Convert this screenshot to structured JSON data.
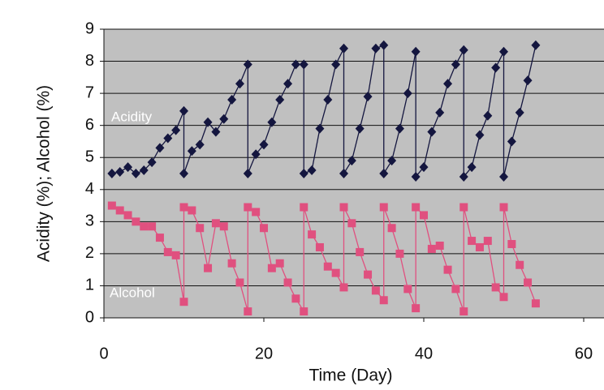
{
  "chart_data": {
    "type": "line",
    "xlabel": "Time (Day)",
    "ylabel": "Acidity (%); Alcohol (%)",
    "xlim": [
      0,
      60
    ],
    "ylim": [
      0,
      9
    ],
    "xticks": [
      0,
      20,
      40,
      60
    ],
    "yticks": [
      0,
      1,
      2,
      3,
      4,
      5,
      6,
      7,
      8,
      9
    ],
    "grid": true,
    "annotations": [
      "Acidity",
      "Alcohol"
    ],
    "series": [
      {
        "name": "Acidity",
        "color": "#14163f",
        "marker": "diamond",
        "x": [
          1,
          2,
          3,
          4,
          5,
          6,
          7,
          8,
          9,
          10,
          10,
          11,
          12,
          13,
          14,
          15,
          16,
          17,
          18,
          18,
          19,
          20,
          21,
          22,
          23,
          24,
          25,
          25,
          26,
          27,
          28,
          29,
          30,
          30,
          31,
          32,
          33,
          34,
          35,
          35,
          36,
          37,
          38,
          39,
          39,
          40,
          41,
          42,
          43,
          44,
          45,
          45,
          46,
          47,
          48,
          49,
          50,
          50,
          51,
          52,
          53,
          54
        ],
        "values": [
          4.5,
          4.55,
          4.7,
          4.5,
          4.6,
          4.85,
          5.3,
          5.6,
          5.85,
          6.45,
          4.5,
          5.2,
          5.4,
          6.1,
          5.8,
          6.2,
          6.8,
          7.3,
          7.9,
          4.5,
          5.1,
          5.4,
          6.1,
          6.8,
          7.3,
          7.9,
          7.9,
          4.5,
          4.6,
          5.9,
          6.8,
          7.9,
          8.4,
          4.5,
          4.9,
          5.9,
          6.9,
          8.4,
          8.5,
          4.5,
          4.9,
          5.9,
          7.0,
          8.3,
          4.4,
          4.7,
          5.8,
          6.4,
          7.3,
          7.9,
          8.35,
          4.4,
          4.7,
          5.7,
          6.3,
          7.8,
          8.3,
          4.4,
          5.5,
          6.4,
          7.4,
          8.5
        ]
      },
      {
        "name": "Alcohol",
        "color": "#e0507f",
        "marker": "square",
        "x": [
          1,
          2,
          3,
          4,
          5,
          6,
          7,
          8,
          9,
          10,
          10,
          11,
          12,
          13,
          14,
          15,
          16,
          17,
          18,
          18,
          19,
          20,
          21,
          22,
          23,
          24,
          25,
          25,
          26,
          27,
          28,
          29,
          30,
          30,
          31,
          32,
          33,
          34,
          35,
          35,
          36,
          37,
          38,
          39,
          39,
          40,
          41,
          42,
          43,
          44,
          45,
          45,
          46,
          47,
          48,
          49,
          50,
          50,
          51,
          52,
          53,
          54
        ],
        "values": [
          3.5,
          3.35,
          3.2,
          3.0,
          2.85,
          2.85,
          2.5,
          2.05,
          1.95,
          0.5,
          3.45,
          3.35,
          2.8,
          1.55,
          2.95,
          2.85,
          1.7,
          1.1,
          0.2,
          3.45,
          3.3,
          2.8,
          1.55,
          1.7,
          1.1,
          0.6,
          0.2,
          3.45,
          2.6,
          2.2,
          1.6,
          1.4,
          0.95,
          3.45,
          2.95,
          2.05,
          1.35,
          0.85,
          0.55,
          3.45,
          2.8,
          2.0,
          0.9,
          0.3,
          3.45,
          3.2,
          2.15,
          2.25,
          1.5,
          0.9,
          0.2,
          3.45,
          2.4,
          2.2,
          2.4,
          0.95,
          0.65,
          3.45,
          2.3,
          1.65,
          1.1,
          0.45
        ]
      }
    ]
  }
}
